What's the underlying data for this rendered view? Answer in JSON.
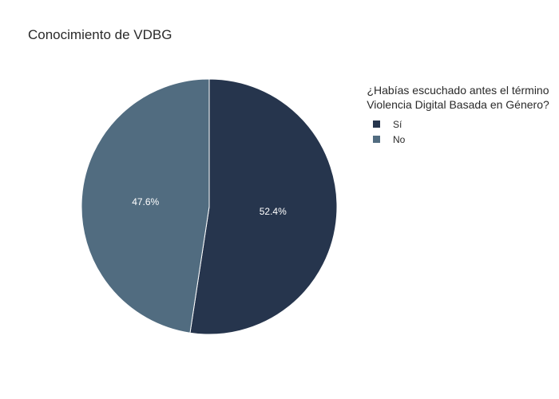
{
  "chart_data": {
    "type": "pie",
    "title": "Conocimiento de VDBG",
    "legend_title": [
      "¿Habías escuchado antes el término",
      "Violencia Digital Basada en Género?"
    ],
    "legend_position": "right",
    "direction": "clockwise",
    "start_angle_deg": 90,
    "slices": [
      {
        "label": "Sí",
        "percent": 52.4,
        "percent_label": "52.4%",
        "color": "#26354d"
      },
      {
        "label": "No",
        "percent": 47.6,
        "percent_label": "47.6%",
        "color": "#516c80"
      }
    ]
  }
}
